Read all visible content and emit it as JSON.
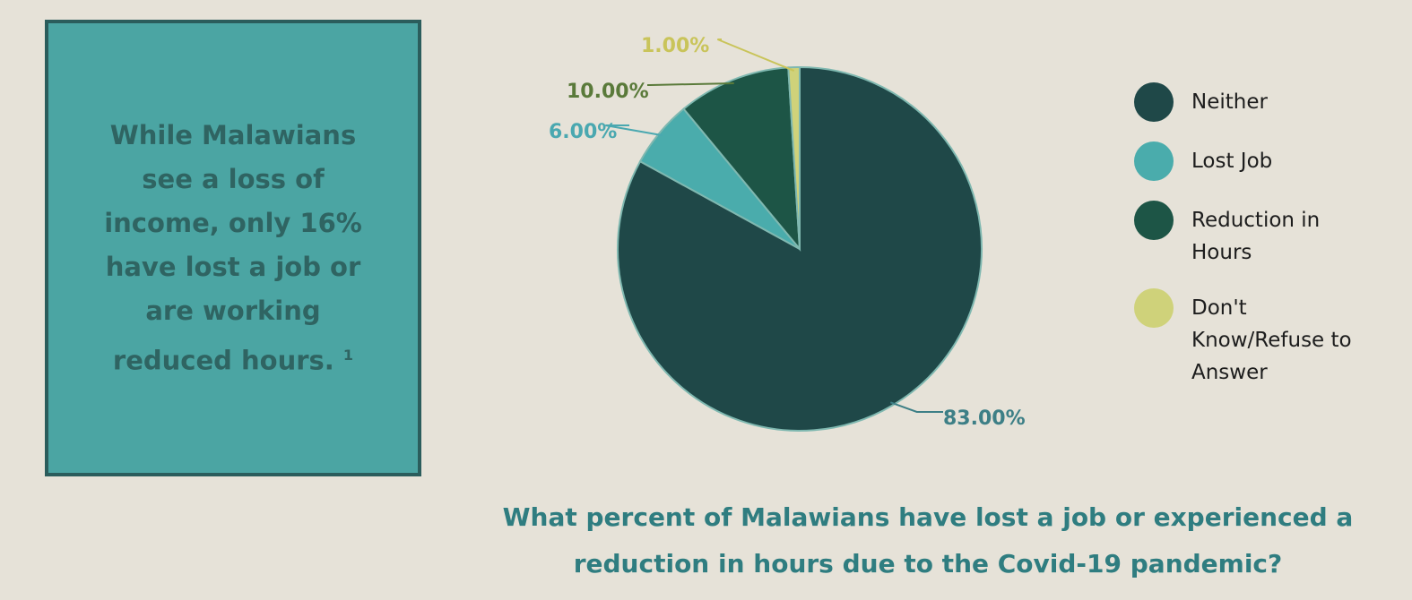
{
  "chart_data": {
    "type": "pie",
    "title": "What percent of Malawians have lost a job or experienced a reduction in hours due to the Covid-19 pandemic?",
    "annotation": "While Malawians see a loss of income, only 16% have lost a job or are working reduced hours.",
    "annotation_footnote": "1",
    "categories": [
      "Neither",
      "Lost Job",
      "Reduction in Hours",
      "Don't Know/Refuse to Answer"
    ],
    "values": [
      83,
      6,
      10,
      1
    ],
    "value_labels": [
      "83.00%",
      "6.00%",
      "10.00%",
      "1.00%"
    ],
    "colors": [
      "#1f4848",
      "#4aacac",
      "#1d5546",
      "#cfd27a"
    ]
  }
}
